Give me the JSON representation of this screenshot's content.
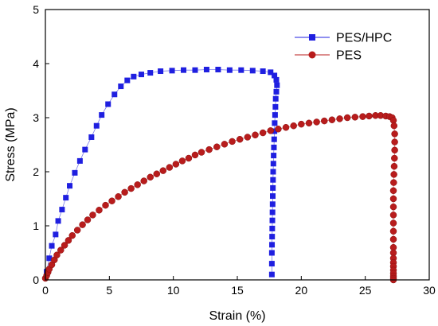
{
  "chart_data": {
    "type": "scatter",
    "title": "",
    "xlabel": "Strain (%)",
    "ylabel": "Stress (MPa)",
    "xlim": [
      0,
      30
    ],
    "ylim": [
      0,
      5
    ],
    "xticks": [
      "0",
      "5",
      "10",
      "15",
      "20",
      "25",
      "30"
    ],
    "yticks": [
      "0",
      "1",
      "2",
      "3",
      "4",
      "5"
    ],
    "legend_position": "top-right",
    "grid": false,
    "series": [
      {
        "name": "PES/HPC",
        "color": "#1f1fe0",
        "marker": "square",
        "x": [
          0.1,
          0.3,
          0.5,
          0.8,
          1.0,
          1.3,
          1.6,
          1.9,
          2.3,
          2.7,
          3.1,
          3.6,
          4.0,
          4.4,
          4.9,
          5.4,
          5.9,
          6.4,
          6.9,
          7.5,
          8.2,
          9.0,
          9.9,
          10.8,
          11.7,
          12.6,
          13.5,
          14.4,
          15.3,
          16.2,
          17.0,
          17.6,
          17.9,
          18.05,
          18.1,
          18.05,
          18.0,
          17.98,
          17.95,
          17.92,
          17.9,
          17.88,
          17.86,
          17.84,
          17.82,
          17.8,
          17.79,
          17.78,
          17.77,
          17.76,
          17.75,
          17.74,
          17.73,
          17.72,
          17.71,
          17.7,
          17.7,
          17.7
        ],
        "y": [
          0.15,
          0.4,
          0.63,
          0.84,
          1.09,
          1.3,
          1.52,
          1.74,
          1.98,
          2.2,
          2.41,
          2.64,
          2.85,
          3.05,
          3.25,
          3.43,
          3.58,
          3.69,
          3.76,
          3.8,
          3.83,
          3.86,
          3.87,
          3.88,
          3.88,
          3.89,
          3.89,
          3.88,
          3.88,
          3.87,
          3.86,
          3.84,
          3.78,
          3.7,
          3.6,
          3.48,
          3.35,
          3.2,
          3.05,
          2.9,
          2.75,
          2.6,
          2.45,
          2.3,
          2.15,
          2.0,
          1.85,
          1.7,
          1.55,
          1.4,
          1.25,
          1.1,
          0.95,
          0.8,
          0.65,
          0.5,
          0.3,
          0.1
        ]
      },
      {
        "name": "PES",
        "color": "#b81c1c",
        "marker": "circle",
        "x": [
          0.0,
          0.1,
          0.2,
          0.3,
          0.5,
          0.7,
          0.9,
          1.2,
          1.5,
          1.8,
          2.1,
          2.5,
          2.9,
          3.3,
          3.7,
          4.2,
          4.7,
          5.2,
          5.7,
          6.2,
          6.7,
          7.2,
          7.7,
          8.2,
          8.7,
          9.2,
          9.7,
          10.2,
          10.7,
          11.2,
          11.7,
          12.2,
          12.8,
          13.4,
          14.0,
          14.6,
          15.2,
          15.8,
          16.4,
          17.0,
          17.6,
          18.2,
          18.8,
          19.4,
          20.0,
          20.6,
          21.2,
          21.8,
          22.4,
          23.0,
          23.6,
          24.2,
          24.8,
          25.3,
          25.8,
          26.2,
          26.6,
          26.9,
          27.1,
          27.2,
          27.25,
          27.3,
          27.3,
          27.3,
          27.28,
          27.26,
          27.24,
          27.22,
          27.2,
          27.2,
          27.2,
          27.2,
          27.2,
          27.2,
          27.2,
          27.2,
          27.2,
          27.2,
          27.2,
          27.2,
          27.2,
          27.2,
          27.2,
          27.2,
          27.2
        ],
        "y": [
          0.03,
          0.08,
          0.14,
          0.2,
          0.28,
          0.37,
          0.46,
          0.55,
          0.64,
          0.73,
          0.82,
          0.92,
          1.02,
          1.11,
          1.2,
          1.29,
          1.38,
          1.46,
          1.54,
          1.62,
          1.69,
          1.76,
          1.83,
          1.9,
          1.96,
          2.02,
          2.08,
          2.14,
          2.2,
          2.25,
          2.31,
          2.36,
          2.41,
          2.46,
          2.51,
          2.56,
          2.6,
          2.64,
          2.68,
          2.72,
          2.76,
          2.79,
          2.82,
          2.85,
          2.88,
          2.9,
          2.92,
          2.94,
          2.96,
          2.98,
          3.0,
          3.01,
          3.02,
          3.03,
          3.04,
          3.04,
          3.03,
          3.02,
          3.0,
          2.95,
          2.85,
          2.7,
          2.55,
          2.4,
          2.25,
          2.1,
          1.95,
          1.8,
          1.65,
          1.5,
          1.35,
          1.2,
          1.05,
          0.9,
          0.75,
          0.6,
          0.5,
          0.4,
          0.32,
          0.25,
          0.18,
          0.12,
          0.07,
          0.03,
          0.0
        ]
      }
    ]
  }
}
